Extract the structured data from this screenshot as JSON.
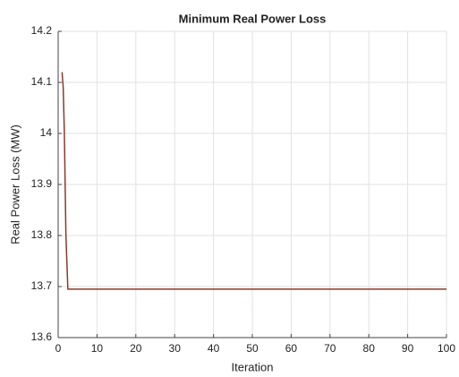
{
  "chart_data": {
    "type": "line",
    "title": "Minimum Real Power Loss",
    "xlabel": "Iteration",
    "ylabel": "Real Power Loss (MW)",
    "x": [
      1,
      1.3,
      1.6,
      2,
      2.5,
      100
    ],
    "series": [
      {
        "color": "#8b3a2a",
        "values": [
          14.12,
          14.09,
          14.0,
          13.8,
          13.695,
          13.695
        ]
      }
    ],
    "xlim": [
      0,
      100
    ],
    "xticks": [
      0,
      10,
      20,
      30,
      40,
      50,
      60,
      70,
      80,
      90,
      100
    ],
    "ylim": [
      13.6,
      14.2
    ],
    "yticks": [
      13.6,
      13.7,
      13.8,
      13.9,
      14,
      14.1,
      14.2
    ],
    "grid": true
  }
}
